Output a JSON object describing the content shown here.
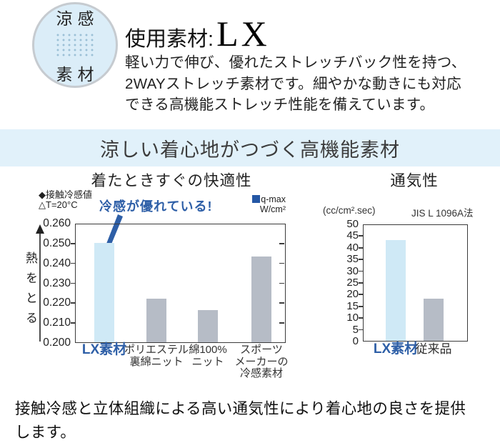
{
  "colors": {
    "accent_blue": "#2e5fa7",
    "legend_blue": "#2457a5",
    "bar_highlight": "#cfe9f6",
    "bar_default": "#b6bcc6",
    "banner_bg": "#e1f1fa",
    "badge_bg": "#dbedf8"
  },
  "badge": {
    "top": "涼感",
    "bottom": "素材"
  },
  "intro": {
    "title_prefix": "使用素材:",
    "title_material": "LX",
    "lines": [
      "軽い力で伸び、優れたストレッチバック性を持つ、",
      "2WAYストレッチ素材です。細やかな動きにも対応",
      "できる高機能ストレッチ性能を備えています。"
    ]
  },
  "banner": {
    "text": "涼しい着心地がつづく高機能素材"
  },
  "footer": {
    "lines": [
      "接触冷感と立体組織による高い通気性により着心地の良さを提供",
      "します。"
    ]
  },
  "chart_data": [
    {
      "type": "bar",
      "title": "着たときすぐの快適性",
      "axis_note_lines": [
        "◆接触冷感値",
        "△T=20°C"
      ],
      "annotation": "冷感が優れている!",
      "legend_lines": [
        "q-max",
        "W/cm²"
      ],
      "ylabel": "熱をとる",
      "categories": [
        "LX素材",
        "ポリエステル裏綿ニット",
        "綿100%ニット",
        "スポーツメーカーの冷感素材"
      ],
      "category_lines": [
        [
          "LX素材"
        ],
        [
          "ポリエステル",
          "裏綿ニット"
        ],
        [
          "綿100%",
          "ニット"
        ],
        [
          "スポーツ",
          "メーカーの",
          "冷感素材"
        ]
      ],
      "values": [
        0.25,
        0.222,
        0.216,
        0.243
      ],
      "highlight": [
        true,
        false,
        false,
        false
      ],
      "ylim": [
        0.2,
        0.26
      ],
      "ytick_step": 0.01,
      "ytick_decimals": 3,
      "grid": false,
      "legend_position": "top-right"
    },
    {
      "type": "bar",
      "title": "通気性",
      "unit_label": "(cc/cm².sec)",
      "method_label": "JIS L 1096A法",
      "categories": [
        "LX素材",
        "従来品"
      ],
      "category_lines": [
        [
          "LX素材"
        ],
        [
          "従来品"
        ]
      ],
      "values": [
        43,
        18
      ],
      "highlight": [
        true,
        false
      ],
      "ylim": [
        0,
        50
      ],
      "ytick_step": 5,
      "ytick_decimals": 0,
      "grid": false
    }
  ]
}
